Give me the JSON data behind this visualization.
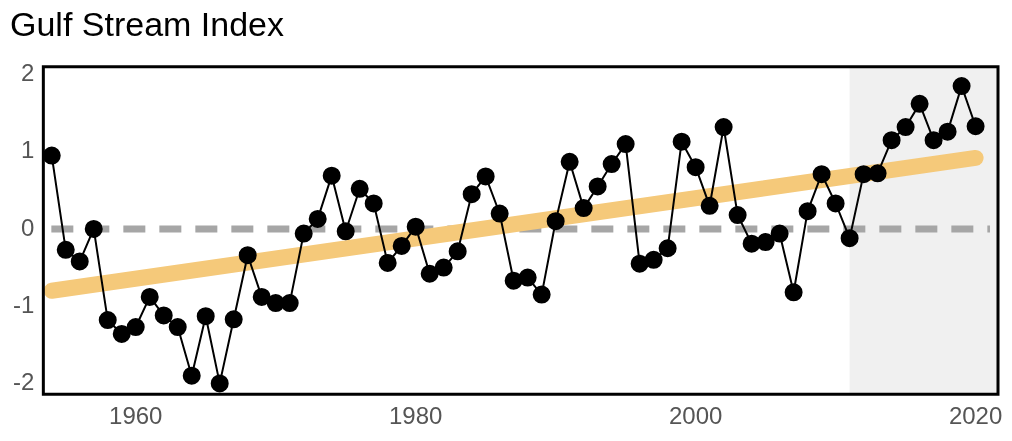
{
  "chart_data": {
    "type": "line",
    "title": "Gulf Stream Index",
    "x": [
      1954,
      1955,
      1956,
      1957,
      1958,
      1959,
      1960,
      1961,
      1962,
      1963,
      1964,
      1965,
      1966,
      1967,
      1968,
      1969,
      1970,
      1971,
      1972,
      1973,
      1974,
      1975,
      1976,
      1977,
      1978,
      1979,
      1980,
      1981,
      1982,
      1983,
      1984,
      1985,
      1986,
      1987,
      1988,
      1989,
      1990,
      1991,
      1992,
      1993,
      1994,
      1995,
      1996,
      1997,
      1998,
      1999,
      2000,
      2001,
      2002,
      2003,
      2004,
      2005,
      2006,
      2007,
      2008,
      2009,
      2010,
      2011,
      2012,
      2013,
      2014,
      2015,
      2016,
      2017,
      2018,
      2019,
      2020
    ],
    "series": [
      {
        "color": "#000000",
        "values": [
          0.95,
          -0.27,
          -0.42,
          0.0,
          -1.18,
          -1.36,
          -1.27,
          -0.88,
          -1.12,
          -1.27,
          -1.9,
          -1.13,
          -2.0,
          -1.17,
          -0.34,
          -0.88,
          -0.96,
          -0.96,
          -0.06,
          0.13,
          0.69,
          -0.03,
          0.52,
          0.33,
          -0.44,
          -0.22,
          0.03,
          -0.58,
          -0.5,
          -0.29,
          0.45,
          0.68,
          0.2,
          -0.67,
          -0.63,
          -0.85,
          0.1,
          0.87,
          0.27,
          0.55,
          0.84,
          1.1,
          -0.45,
          -0.4,
          -0.25,
          1.13,
          0.8,
          0.3,
          1.32,
          0.18,
          -0.19,
          -0.17,
          -0.06,
          -0.82,
          0.23,
          0.71,
          0.33,
          -0.12,
          0.71,
          0.72,
          1.15,
          1.32,
          1.62,
          1.15,
          1.26,
          1.85,
          1.33
        ]
      },
      {
        "type": "line",
        "color": "#f5c97a",
        "x": [
          1954,
          2020
        ],
        "values": [
          -0.8,
          0.92
        ],
        "marker": "none"
      }
    ],
    "marker": "circle",
    "line_style": "solid",
    "xlim": [
      1953.4,
      2021.6
    ],
    "xticks": [
      1960,
      1980,
      2000,
      2020
    ],
    "ylim": [
      -2.14,
      2.1
    ],
    "yticks": [
      -2,
      -1,
      0,
      1,
      2
    ],
    "grid": false,
    "legend": false,
    "ref_lines": [
      {
        "axis": "y",
        "value": 0,
        "color": "#a6a6a6",
        "line_style": "dashed"
      }
    ],
    "bands": [
      {
        "axis": "x",
        "from": 2011,
        "to": 2021.6,
        "color": "#f0f0f0"
      }
    ]
  }
}
